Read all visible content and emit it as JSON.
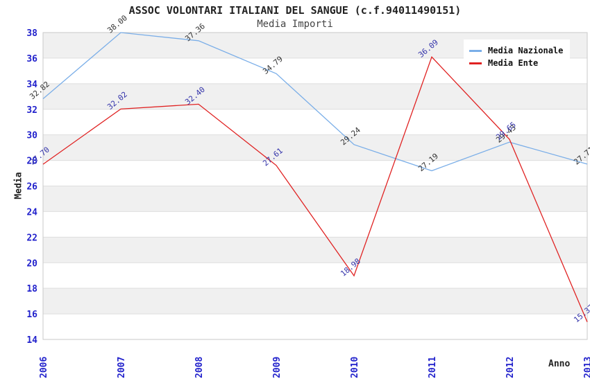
{
  "title": "ASSOC VOLONTARI ITALIANI DEL SANGUE (c.f.94011490151)",
  "subtitle": "Media Importi",
  "chart_data": {
    "type": "line",
    "x": [
      "2006",
      "2007",
      "2008",
      "2009",
      "2010",
      "2011",
      "2012",
      "2013"
    ],
    "series": [
      {
        "name": "Media Nazionale",
        "color": "#7aaee8",
        "label_color": "#333333",
        "values": [
          32.82,
          38.0,
          37.36,
          34.79,
          29.24,
          27.19,
          29.43,
          27.71
        ]
      },
      {
        "name": "Media Ente",
        "color": "#e02222",
        "label_color": "#3333aa",
        "values": [
          27.7,
          32.02,
          32.4,
          27.61,
          18.98,
          36.09,
          29.65,
          15.37
        ]
      }
    ],
    "xlabel": "Anno",
    "ylabel": "Media",
    "ylim": [
      14,
      38
    ],
    "ytick_step": 2,
    "grid": "horizontal-bands",
    "band_colors": [
      "#f0f0f0",
      "#ffffff"
    ],
    "gridline_color": "#dedede",
    "plot_border_color": "#c9c9c9",
    "axis_tick_color": "#2222cc",
    "legend_position": "top-right"
  }
}
